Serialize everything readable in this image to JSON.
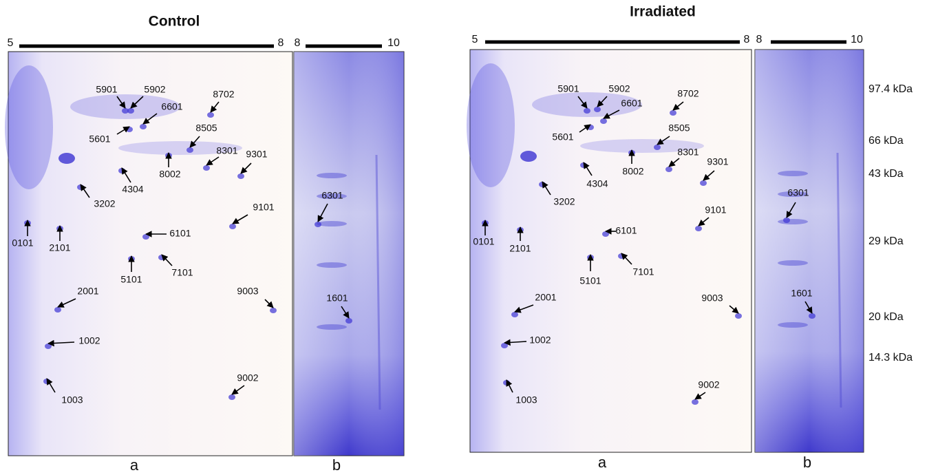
{
  "panels": [
    {
      "title": "Control",
      "ph_a": [
        "5",
        "8"
      ],
      "ph_b": [
        "8",
        "10"
      ],
      "lanes": [
        "a",
        "b"
      ],
      "spots": [
        "5901",
        "5902",
        "6601",
        "8702",
        "5601",
        "8505",
        "8301",
        "9301",
        "8002",
        "4304",
        "3202",
        "6301",
        "9101",
        "0101",
        "2101",
        "6101",
        "5101",
        "7101",
        "2001",
        "9003",
        "1601",
        "1002",
        "9002",
        "1003"
      ]
    },
    {
      "title": "Irradiated",
      "ph_a": [
        "5",
        "8"
      ],
      "ph_b": [
        "8",
        "10"
      ],
      "lanes": [
        "a",
        "b"
      ],
      "spots": [
        "5901",
        "5902",
        "6601",
        "8702",
        "5601",
        "8505",
        "8301",
        "9301",
        "8002",
        "4304",
        "3202",
        "6301",
        "9101",
        "0101",
        "2101",
        "6101",
        "5101",
        "7101",
        "2001",
        "9003",
        "1601",
        "1002",
        "9002",
        "1003"
      ]
    }
  ],
  "mw_markers": [
    "97.4 kDa",
    "66 kDa",
    "43 kDa",
    "29 kDa",
    "20 kDa",
    "14.3 kDa"
  ]
}
